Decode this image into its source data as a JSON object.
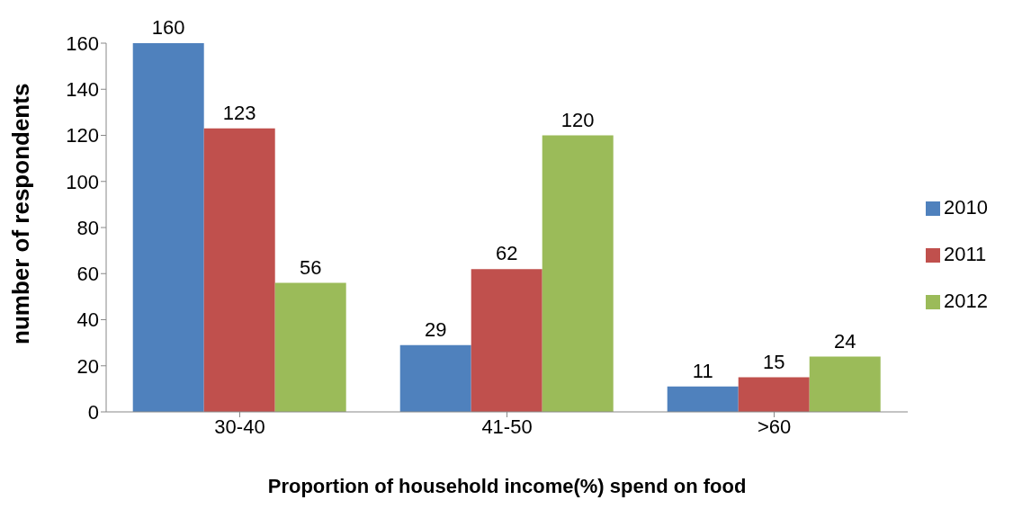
{
  "chart_data": {
    "type": "bar",
    "xlabel": "Proportion of household income(%) spend on food",
    "ylabel": "number of respondents",
    "categories": [
      "30-40",
      "41-50",
      ">60"
    ],
    "series": [
      {
        "name": "2010",
        "color": "#4f81bd",
        "values": [
          160,
          29,
          11
        ]
      },
      {
        "name": "2011",
        "color": "#c0504d",
        "values": [
          123,
          62,
          15
        ]
      },
      {
        "name": "2012",
        "color": "#9bbb59",
        "values": [
          56,
          120,
          24
        ]
      }
    ],
    "ylim": [
      0,
      160
    ],
    "yticks": [
      0,
      20,
      40,
      60,
      80,
      100,
      120,
      140,
      160
    ],
    "grid": false,
    "legend": "right",
    "data_labels": true
  }
}
